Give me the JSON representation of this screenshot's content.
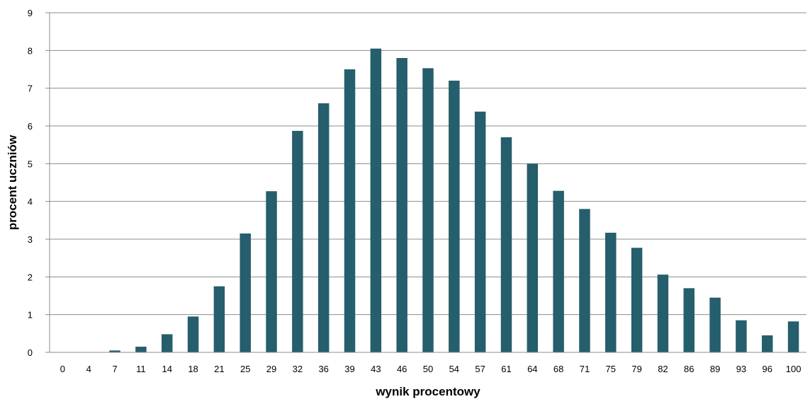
{
  "chart_data": {
    "type": "bar",
    "title": "",
    "xlabel": "wynik procentowy",
    "ylabel": "procent uczniów",
    "ylim": [
      0,
      9
    ],
    "yticks": [
      0,
      1,
      2,
      3,
      4,
      5,
      6,
      7,
      8,
      9
    ],
    "grid": true,
    "legend": "none",
    "bar_color": "#255e6c",
    "categories": [
      "0",
      "4",
      "7",
      "11",
      "14",
      "18",
      "21",
      "25",
      "29",
      "32",
      "36",
      "39",
      "43",
      "46",
      "50",
      "54",
      "57",
      "61",
      "64",
      "68",
      "71",
      "75",
      "79",
      "82",
      "86",
      "89",
      "93",
      "96",
      "100"
    ],
    "values": [
      0,
      0,
      0.05,
      0.15,
      0.48,
      0.95,
      1.75,
      3.15,
      4.27,
      5.87,
      6.6,
      7.5,
      8.05,
      7.8,
      7.53,
      7.2,
      6.38,
      5.7,
      5.0,
      4.28,
      3.8,
      3.17,
      2.77,
      2.06,
      1.7,
      1.45,
      0.85,
      0.45,
      0.82
    ]
  }
}
